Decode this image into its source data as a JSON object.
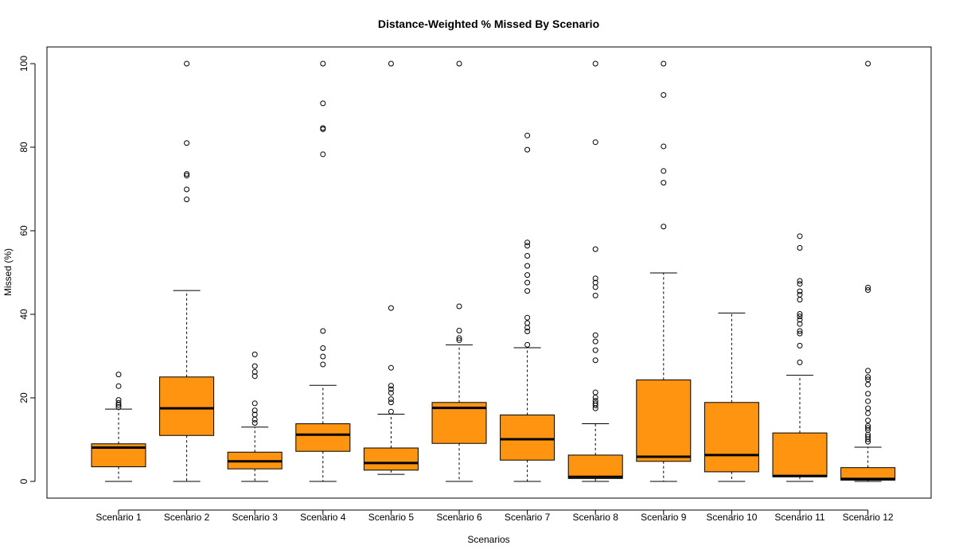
{
  "chart_data": {
    "type": "box",
    "title": "Distance-Weighted % Missed By Scenario",
    "xlabel": "Scenarios",
    "ylabel": "Missed (%)",
    "ylim": [
      0,
      100
    ],
    "yticks": [
      0,
      20,
      40,
      60,
      80,
      100
    ],
    "grid": false,
    "legend": "none",
    "box_fill_color": "#ff9410",
    "box_stroke_color": "#000000",
    "categories": [
      "Scenario 1",
      "Scenario 2",
      "Scenario 3",
      "Scenario 4",
      "Scenario 5",
      "Scenario 6",
      "Scenario 7",
      "Scenario 8",
      "Scenario 9",
      "Scenario 10",
      "Scenario 11",
      "Scenario 12"
    ],
    "boxes": [
      {
        "whisker_low": 0,
        "q1": 3.5,
        "median": 8.1,
        "q3": 9.0,
        "whisker_high": 17.3,
        "outliers": [
          17.8,
          18.3,
          18.8,
          19.5,
          22.8,
          25.6
        ]
      },
      {
        "whisker_low": 0,
        "q1": 11.0,
        "median": 17.5,
        "q3": 25.0,
        "whisker_high": 45.7,
        "outliers": [
          67.5,
          69.9,
          73.2,
          73.6,
          81.0,
          100
        ]
      },
      {
        "whisker_low": 0,
        "q1": 3.0,
        "median": 4.8,
        "q3": 7.0,
        "whisker_high": 13.0,
        "outliers": [
          14.0,
          14.8,
          16.0,
          17.0,
          18.7,
          25.2,
          26.2,
          27.6,
          30.4
        ]
      },
      {
        "whisker_low": 0,
        "q1": 7.2,
        "median": 11.2,
        "q3": 13.8,
        "whisker_high": 23.0,
        "outliers": [
          28.0,
          29.9,
          31.9,
          36.0,
          78.3,
          84.3,
          84.6,
          90.5,
          100
        ]
      },
      {
        "whisker_low": 1.7,
        "q1": 2.7,
        "median": 4.4,
        "q3": 8.0,
        "whisker_high": 16.1,
        "outliers": [
          16.7,
          18.9,
          19.7,
          21.2,
          22.1,
          22.9,
          27.2,
          41.5,
          100
        ]
      },
      {
        "whisker_low": 0,
        "q1": 9.1,
        "median": 17.6,
        "q3": 18.9,
        "whisker_high": 32.7,
        "outliers": [
          33.8,
          34.3,
          36.1,
          41.9,
          100
        ]
      },
      {
        "whisker_low": 0,
        "q1": 5.1,
        "median": 10.1,
        "q3": 15.9,
        "whisker_high": 32.0,
        "outliers": [
          32.7,
          35.9,
          36.8,
          37.9,
          39.2,
          45.6,
          47.6,
          49.4,
          51.6,
          54.0,
          56.4,
          57.2,
          79.4,
          82.8
        ]
      },
      {
        "whisker_low": 0,
        "q1": 0.7,
        "median": 1.1,
        "q3": 6.3,
        "whisker_high": 13.8,
        "outliers": [
          17.5,
          18.2,
          18.7,
          19.3,
          20.1,
          21.3,
          29.0,
          31.4,
          33.5,
          35.0,
          44.5,
          46.5,
          47.6,
          48.6,
          55.6,
          81.2,
          100
        ]
      },
      {
        "whisker_low": 0,
        "q1": 4.8,
        "median": 5.9,
        "q3": 24.3,
        "whisker_high": 49.9,
        "outliers": [
          61.0,
          71.5,
          74.3,
          80.2,
          92.5,
          100
        ]
      },
      {
        "whisker_low": 0,
        "q1": 2.3,
        "median": 6.3,
        "q3": 18.9,
        "whisker_high": 40.3,
        "outliers": []
      },
      {
        "whisker_low": 0,
        "q1": 1.1,
        "median": 1.3,
        "q3": 11.6,
        "whisker_high": 25.4,
        "outliers": [
          28.5,
          32.5,
          35.4,
          36.0,
          37.7,
          38.7,
          39.5,
          40.1,
          43.5,
          44.7,
          45.5,
          47.3,
          48.0,
          55.9,
          58.7
        ]
      },
      {
        "whisker_low": 0,
        "q1": 0.3,
        "median": 0.6,
        "q3": 3.3,
        "whisker_high": 8.2,
        "outliers": [
          9.5,
          10.1,
          10.7,
          11.2,
          12.3,
          12.8,
          13.3,
          14.6,
          16.3,
          17.5,
          19.2,
          21.0,
          23.2,
          24.4,
          25.0,
          26.5,
          45.8,
          46.4,
          100
        ]
      }
    ]
  }
}
